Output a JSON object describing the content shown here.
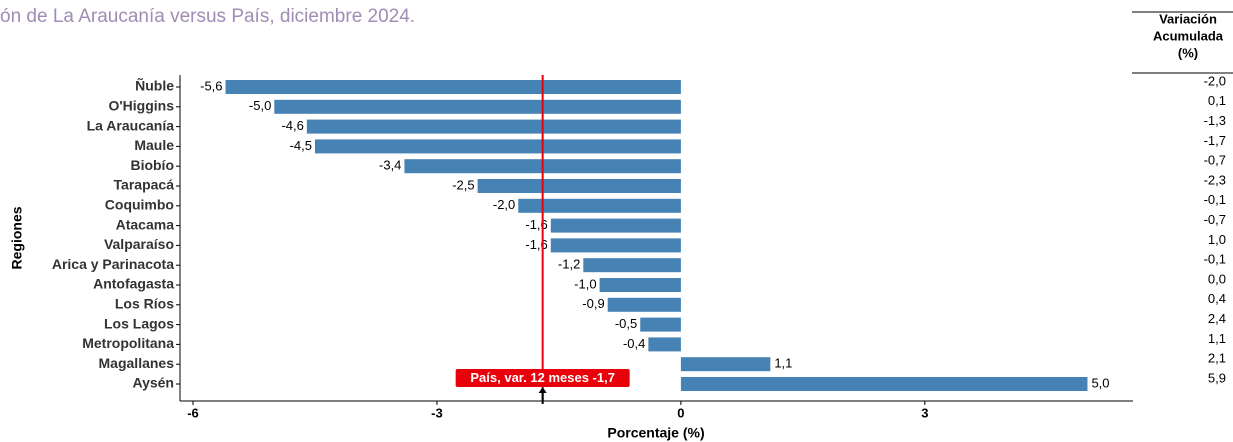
{
  "chart_data": {
    "type": "barh",
    "title": "ón de La Araucanía versus País, diciembre 2024.",
    "x_label": "Porcentaje (%)",
    "y_label": "Regiones",
    "categories": [
      "Ñuble",
      "O'Higgins",
      "La Araucanía",
      "Maule",
      "Biobío",
      "Tarapacá",
      "Coquimbo",
      "Atacama",
      "Valparaíso",
      "Arica y Parinacota",
      "Antofagasta",
      "Los Ríos",
      "Los Lagos",
      "Metropolitana",
      "Magallanes",
      "Aysén"
    ],
    "values": [
      -5.6,
      -5.0,
      -4.6,
      -4.5,
      -3.4,
      -2.5,
      -2.0,
      -1.6,
      -1.6,
      -1.2,
      -1.0,
      -0.9,
      -0.5,
      -0.4,
      1.1,
      5.0
    ],
    "value_labels": [
      "-5,6",
      "-5,0",
      "-4,6",
      "-4,5",
      "-3,4",
      "-2,5",
      "-2,0",
      "-1,6",
      "-1,6",
      "-1,2",
      "-1,0",
      "-0,9",
      "-0,5",
      "-0,4",
      "1,1",
      "5,0"
    ],
    "color": "#4682b4",
    "xlim": [
      -6.16,
      5.56
    ],
    "xticks": [
      -6,
      -3,
      0,
      3
    ],
    "reference_line": {
      "value": -1.7,
      "label": "País, var. 12 meses -1,7",
      "color": "#e8000b"
    }
  },
  "table": {
    "header": [
      "Variación",
      "Acumulada",
      "(%)"
    ],
    "values": [
      "-2,0",
      "0,1",
      "-1,3",
      "-1,7",
      "-0,7",
      "-2,3",
      "-0,1",
      "-0,7",
      "1,0",
      "-0,1",
      "0,0",
      "0,4",
      "2,4",
      "1,1",
      "2,1",
      "5,9"
    ]
  }
}
